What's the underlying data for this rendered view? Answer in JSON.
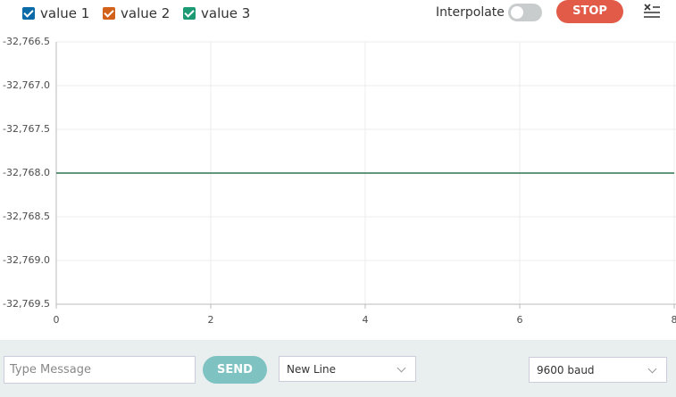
{
  "chart_data": {
    "type": "line",
    "x": [
      0,
      8
    ],
    "series": [
      {
        "name": "value 1",
        "color": "#0b6aa8",
        "values": [
          -32768,
          -32768
        ]
      },
      {
        "name": "value 2",
        "color": "#d2621a",
        "values": [
          -32768,
          -32768
        ]
      },
      {
        "name": "value 3",
        "color": "#1c9a74",
        "values": [
          -32768,
          -32768
        ]
      }
    ],
    "xlim": [
      0,
      8
    ],
    "xticks": [
      0,
      2,
      4,
      6,
      8
    ],
    "ylim": [
      -32769.5,
      -32766.5
    ],
    "yticks": [
      {
        "value": -32766.5,
        "label": "-32,766.5"
      },
      {
        "value": -32767.0,
        "label": "-32,767.0"
      },
      {
        "value": -32767.5,
        "label": "-32,767.5"
      },
      {
        "value": -32768.0,
        "label": "-32,768.0"
      },
      {
        "value": -32768.5,
        "label": "-32,768.5"
      },
      {
        "value": -32769.0,
        "label": "-32,769.0"
      },
      {
        "value": -32769.5,
        "label": "-32,769.5"
      }
    ],
    "grid": true
  },
  "controls": {
    "interpolate": "Interpolate",
    "stop": "STOP",
    "message_placeholder": "Type Message",
    "send": "SEND",
    "line_ending": "New Line",
    "baud": "9600 baud"
  }
}
